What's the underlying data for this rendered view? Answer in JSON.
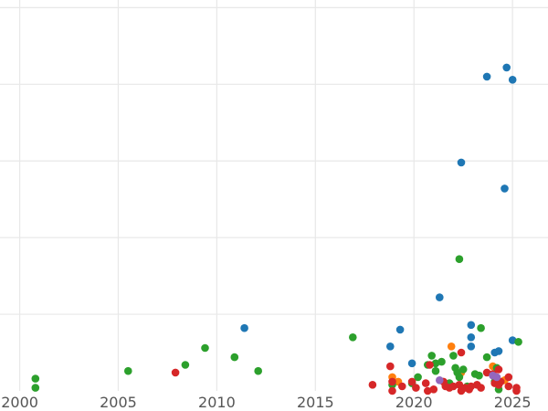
{
  "chart_data": {
    "type": "scatter",
    "title": "",
    "xlabel": "",
    "ylabel": "",
    "xlim": [
      1999,
      2026.8
    ],
    "ylim": [
      0,
      25.5
    ],
    "xticks": [
      2000,
      2005,
      2010,
      2015,
      2020,
      2025
    ],
    "xtick_labels": [
      "2000",
      "2005",
      "2010",
      "2015",
      "2020",
      "2025"
    ],
    "ygrid": [
      5,
      10,
      15,
      20,
      25
    ],
    "grid": true,
    "legend": "none",
    "colors": {
      "blue": "#1f77b4",
      "orange": "#ff7f0e",
      "green": "#2ca02c",
      "red": "#d62728",
      "purple": "#9467bd"
    },
    "series": [
      {
        "color": "#1f77b4",
        "points": [
          [
            2011.4,
            4.1
          ],
          [
            2018.8,
            2.9
          ],
          [
            2019.3,
            4.0
          ],
          [
            2019.9,
            1.8
          ],
          [
            2021.3,
            6.1
          ],
          [
            2022.4,
            14.9
          ],
          [
            2022.9,
            3.5
          ],
          [
            2022.9,
            4.3
          ],
          [
            2022.9,
            2.9
          ],
          [
            2023.7,
            20.5
          ],
          [
            2024.1,
            2.5
          ],
          [
            2024.3,
            2.6
          ],
          [
            2024.6,
            13.2
          ],
          [
            2024.7,
            21.1
          ],
          [
            2025.0,
            3.3
          ],
          [
            2025.0,
            20.3
          ]
        ]
      },
      {
        "color": "#ff7f0e",
        "points": [
          [
            2018.9,
            0.9
          ],
          [
            2021.9,
            2.9
          ],
          [
            2022.4,
            1.2
          ],
          [
            2024.0,
            1.6
          ],
          [
            2024.6,
            0.7
          ],
          [
            2019.2,
            0.6
          ]
        ]
      },
      {
        "color": "#2ca02c",
        "points": [
          [
            2000.8,
            0.8
          ],
          [
            2000.8,
            0.2
          ],
          [
            2005.5,
            1.3
          ],
          [
            2008.4,
            1.7
          ],
          [
            2009.4,
            2.8
          ],
          [
            2010.9,
            2.2
          ],
          [
            2012.1,
            1.3
          ],
          [
            2016.9,
            3.5
          ],
          [
            2018.9,
            0.4
          ],
          [
            2019.9,
            0.5
          ],
          [
            2020.2,
            0.9
          ],
          [
            2020.7,
            1.7
          ],
          [
            2020.9,
            2.3
          ],
          [
            2021.1,
            1.8
          ],
          [
            2021.4,
            1.9
          ],
          [
            2021.8,
            0.5
          ],
          [
            2022.0,
            2.3
          ],
          [
            2022.1,
            1.5
          ],
          [
            2022.2,
            1.2
          ],
          [
            2022.3,
            0.9
          ],
          [
            2022.3,
            8.6
          ],
          [
            2022.5,
            1.4
          ],
          [
            2022.7,
            0.3
          ],
          [
            2023.1,
            1.1
          ],
          [
            2023.3,
            1.0
          ],
          [
            2023.4,
            4.1
          ],
          [
            2023.7,
            2.2
          ],
          [
            2024.1,
            0.6
          ],
          [
            2024.2,
            1.5
          ],
          [
            2024.3,
            0.1
          ],
          [
            2025.3,
            3.2
          ],
          [
            2021.1,
            1.3
          ]
        ]
      },
      {
        "color": "#d62728",
        "points": [
          [
            2007.9,
            1.2
          ],
          [
            2017.9,
            0.4
          ],
          [
            2018.8,
            1.6
          ],
          [
            2018.9,
            0.6
          ],
          [
            2018.9,
            0.0
          ],
          [
            2019.4,
            0.3
          ],
          [
            2019.9,
            0.6
          ],
          [
            2020.1,
            0.2
          ],
          [
            2020.6,
            0.5
          ],
          [
            2020.8,
            1.7
          ],
          [
            2020.7,
            0.0
          ],
          [
            2021.0,
            0.1
          ],
          [
            2021.5,
            0.6
          ],
          [
            2021.8,
            0.2
          ],
          [
            2022.0,
            0.3
          ],
          [
            2022.3,
            0.4
          ],
          [
            2022.4,
            0.0
          ],
          [
            2022.4,
            2.5
          ],
          [
            2022.6,
            0.2
          ],
          [
            2022.8,
            0.1
          ],
          [
            2022.9,
            0.3
          ],
          [
            2023.2,
            0.4
          ],
          [
            2023.4,
            0.2
          ],
          [
            2023.7,
            1.2
          ],
          [
            2024.0,
            1.1
          ],
          [
            2024.1,
            0.5
          ],
          [
            2024.3,
            1.4
          ],
          [
            2024.4,
            0.6
          ],
          [
            2024.8,
            0.9
          ],
          [
            2024.8,
            0.3
          ],
          [
            2025.2,
            0.2
          ],
          [
            2025.2,
            0.0
          ],
          [
            2024.3,
            0.4
          ],
          [
            2021.6,
            0.3
          ]
        ]
      },
      {
        "color": "#9467bd",
        "points": [
          [
            2021.3,
            0.7
          ],
          [
            2024.0,
            1.0
          ],
          [
            2024.2,
            0.9
          ]
        ]
      }
    ]
  }
}
